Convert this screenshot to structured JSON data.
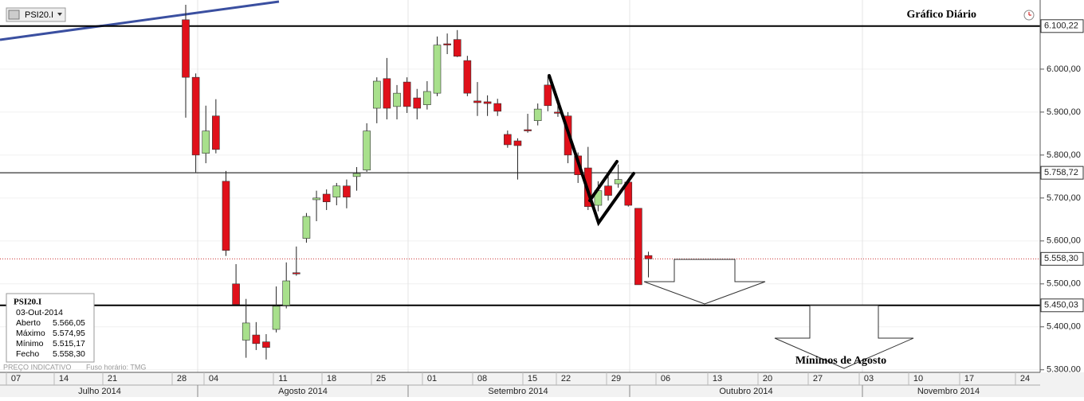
{
  "chart_data": {
    "type": "candlestick",
    "title": "Gráfico Diário",
    "series_name": "PSI20.I",
    "up_color": "#a8e08c",
    "down_color": "#e0101a",
    "open": [
      6115,
      5981,
      5804,
      5891,
      5739,
      5500,
      5369,
      5381,
      5365,
      5394,
      5450,
      5526,
      5606,
      5696,
      5709,
      5702,
      5728,
      5750,
      5765,
      5909,
      5978,
      5913,
      5970,
      5933,
      5917,
      5944,
      6059,
      6069,
      6020,
      5926,
      5924,
      5920,
      5848,
      5833,
      5859,
      5880,
      5963,
      5900,
      5891,
      5798,
      5770,
      5683,
      5728,
      5733,
      5737,
      5676,
      5566.05
    ],
    "high": [
      6150,
      5990,
      5915,
      5930,
      5763,
      5546,
      5465,
      5411,
      5383,
      5494,
      5550,
      5587,
      5665,
      5717,
      5720,
      5735,
      5743,
      5772,
      5874,
      5981,
      6026,
      5963,
      5981,
      5954,
      5972,
      6076,
      6083,
      6091,
      6031,
      5970,
      5939,
      5931,
      5857,
      5839,
      5896,
      5920,
      5983,
      5917,
      5900,
      5806,
      5819,
      5739,
      5750,
      5778,
      5743,
      5676,
      5574.95
    ],
    "low": [
      5887,
      5760,
      5781,
      5804,
      5565,
      5452,
      5328,
      5346,
      5324,
      5387,
      5443,
      5519,
      5596,
      5646,
      5672,
      5683,
      5676,
      5717,
      5761,
      5874,
      5883,
      5883,
      5898,
      5883,
      5906,
      5937,
      6035,
      6028,
      5937,
      5891,
      5891,
      5891,
      5817,
      5743,
      5852,
      5869,
      5902,
      5889,
      5781,
      5735,
      5672,
      5669,
      5694,
      5724,
      5680,
      5498,
      5515.17
    ],
    "close": [
      5981,
      5800,
      5856,
      5813,
      5578,
      5452,
      5409,
      5361,
      5352,
      5448,
      5507,
      5524,
      5657,
      5700,
      5691,
      5728,
      5702,
      5757,
      5856,
      5972,
      5909,
      5944,
      5913,
      5909,
      5948,
      6056,
      6057,
      6030,
      5944,
      5922,
      5920,
      5902,
      5824,
      5822,
      5857,
      5907,
      5915,
      5898,
      5800,
      5754,
      5680,
      5717,
      5706,
      5743,
      5683,
      5498,
      5558.3
    ],
    "ylim": [
      5294,
      6161
    ],
    "yticks": [
      {
        "value": 5300,
        "label": "5.300,00"
      },
      {
        "value": 5400,
        "label": "5.400,00"
      },
      {
        "value": 5500,
        "label": "5.500,00"
      },
      {
        "value": 5600,
        "label": "5.600,00"
      },
      {
        "value": 5700,
        "label": "5.700,00"
      },
      {
        "value": 5800,
        "label": "5.800,00"
      },
      {
        "value": 5900,
        "label": "5.900,00"
      },
      {
        "value": 6000,
        "label": "6.000,00"
      }
    ],
    "levels": [
      {
        "value": 6100.22,
        "label": "6.100,22"
      },
      {
        "value": 5758.72,
        "label": "5.758,72"
      },
      {
        "value": 5558.3,
        "label": "5.558,30"
      },
      {
        "value": 5450.03,
        "label": "5.450,03"
      }
    ],
    "x_labels": [
      "07",
      "14",
      "21",
      "28",
      "04",
      "11",
      "18",
      "25",
      "01",
      "08",
      "15",
      "22",
      "29",
      "06",
      "13",
      "20",
      "27",
      "03",
      "10",
      "17",
      "24"
    ],
    "months": [
      "Julho 2014",
      "Agosto 2014",
      "Setembro 2014",
      "Outubro 2014",
      "Novembro 2014"
    ],
    "annotation": "Mínimos de Agosto",
    "info": {
      "name": "PSI20.I",
      "date": "03-Out-2014",
      "rows": [
        {
          "label": "Aberto",
          "value": "5.566,05"
        },
        {
          "label": "Máximo",
          "value": "5.574,95"
        },
        {
          "label": "Mínimo",
          "value": "5.515,17"
        },
        {
          "label": "Fecho",
          "value": "5.558,30"
        }
      ]
    },
    "footer": [
      "PREÇO INDICATIVO",
      "Fuso horário: TMG"
    ]
  }
}
